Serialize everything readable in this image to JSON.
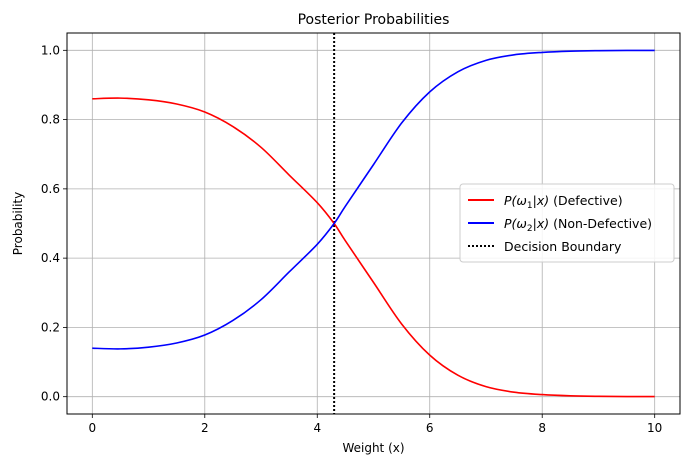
{
  "chart_data": {
    "type": "line",
    "title": "Posterior Probabilities",
    "xlabel": "Weight (x)",
    "ylabel": "Probability",
    "xlim": [
      -0.45,
      10.45
    ],
    "ylim": [
      -0.05,
      1.05
    ],
    "grid": true,
    "legend_position": "center-right",
    "x_ticks": [
      0,
      2,
      4,
      6,
      8,
      10
    ],
    "x_tick_labels": [
      "0",
      "2",
      "4",
      "6",
      "8",
      "10"
    ],
    "y_ticks": [
      0.0,
      0.2,
      0.4,
      0.6,
      0.8,
      1.0
    ],
    "y_tick_labels": [
      "0.0",
      "0.2",
      "0.4",
      "0.6",
      "0.8",
      "1.0"
    ],
    "x": [
      0,
      0.5,
      1,
      1.5,
      2,
      2.5,
      3,
      3.5,
      4,
      4.3,
      4.5,
      5,
      5.5,
      6,
      6.5,
      7,
      7.5,
      8,
      8.5,
      9,
      9.5,
      10
    ],
    "series": [
      {
        "name_prefix": "P(ω",
        "name_sub": "1",
        "name_mid": "|x)",
        "name_suffix": " (Defective)",
        "color": "#ff0000",
        "values": [
          0.86,
          0.862,
          0.857,
          0.845,
          0.822,
          0.78,
          0.72,
          0.64,
          0.56,
          0.5,
          0.45,
          0.33,
          0.21,
          0.12,
          0.062,
          0.029,
          0.013,
          0.006,
          0.0025,
          0.001,
          0.0004,
          0.0002
        ]
      },
      {
        "name_prefix": "P(ω",
        "name_sub": "2",
        "name_mid": "|x)",
        "name_suffix": " (Non-Defective)",
        "color": "#0000ff",
        "values": [
          0.14,
          0.138,
          0.143,
          0.155,
          0.178,
          0.22,
          0.28,
          0.36,
          0.44,
          0.5,
          0.55,
          0.67,
          0.79,
          0.88,
          0.938,
          0.971,
          0.987,
          0.994,
          0.9975,
          0.999,
          0.9996,
          0.9998
        ]
      }
    ],
    "decision_boundary": {
      "name": "Decision Boundary",
      "x": 4.3,
      "color": "#000000"
    }
  }
}
